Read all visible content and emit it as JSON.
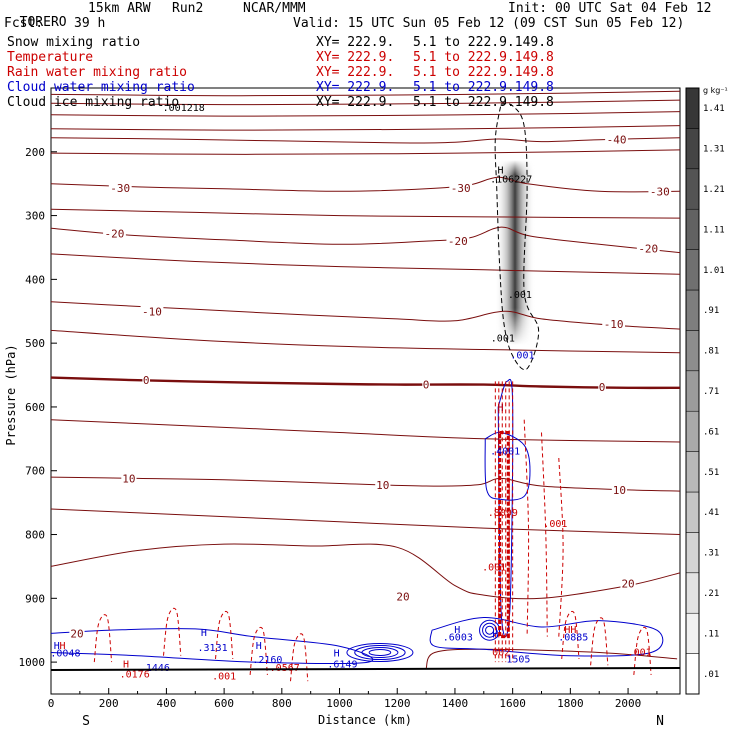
{
  "header": {
    "model": "TORERO",
    "config": "15km ARW",
    "run": "Run2",
    "org": "NCAR/MMM",
    "init": "Init: 00 UTC Sat 04 Feb 12",
    "fcst_label": "Fcst:",
    "fcst_value": "39 h",
    "valid": "Valid: 15 UTC Sun 05 Feb 12 (09 CST Sun 05 Feb 12)"
  },
  "fields": [
    {
      "name": "Snow mixing ratio",
      "xy": "XY= 222.9.",
      "range": "5.1 to 222.9.149.8",
      "color": "#000000"
    },
    {
      "name": "Temperature",
      "xy": "XY= 222.9.",
      "range": "5.1 to 222.9.149.8",
      "color": "#cc0000"
    },
    {
      "name": "Rain water mixing ratio",
      "xy": "XY= 222.9.",
      "range": "5.1 to 222.9.149.8",
      "color": "#cc0000"
    },
    {
      "name": "Cloud water mixing ratio",
      "xy": "XY= 222.9.",
      "range": "5.1 to 222.9.149.8",
      "color": "#0000cc"
    },
    {
      "name": "Cloud ice mixing ratio",
      "xy": "XY= 222.9.",
      "range": "5.1 to 222.9.149.8",
      "color": "#000000"
    }
  ],
  "chart_data": {
    "type": "line",
    "xlabel": "Distance (km)",
    "ylabel": "Pressure (hPa)",
    "x_ticks": [
      0,
      200,
      400,
      600,
      800,
      1000,
      1200,
      1400,
      1600,
      1800,
      2000
    ],
    "y_ticks": [
      200,
      300,
      400,
      500,
      600,
      700,
      800,
      900,
      1000
    ],
    "xlim": [
      0,
      2180
    ],
    "ylim": [
      1050,
      100
    ],
    "x_end_labels": {
      "left": "S",
      "right": "N"
    },
    "colorbar": {
      "unit": "g kg⁻¹",
      "labels": [
        ".01",
        ".11",
        ".21",
        ".31",
        ".41",
        ".51",
        ".61",
        ".71",
        ".81",
        ".91",
        "1.01",
        "1.11",
        "1.21",
        "1.31",
        "1.41"
      ]
    },
    "isotherms": [
      {
        "value": -40,
        "label": "-40",
        "points": [
          [
            0,
            178
          ],
          [
            400,
            180
          ],
          [
            800,
            183
          ],
          [
            1200,
            186
          ],
          [
            1400,
            185
          ],
          [
            1550,
            180
          ],
          [
            1700,
            184
          ],
          [
            1900,
            181
          ],
          [
            2180,
            178
          ]
        ]
      },
      {
        "value": -30,
        "label": "-30",
        "points": [
          [
            0,
            250
          ],
          [
            300,
            255
          ],
          [
            600,
            258
          ],
          [
            1000,
            262
          ],
          [
            1300,
            258
          ],
          [
            1450,
            252
          ],
          [
            1550,
            240
          ],
          [
            1650,
            250
          ],
          [
            1900,
            262
          ],
          [
            2180,
            262
          ]
        ]
      },
      {
        "value": -20,
        "label": "-20",
        "points": [
          [
            0,
            320
          ],
          [
            250,
            330
          ],
          [
            600,
            338
          ],
          [
            1000,
            345
          ],
          [
            1300,
            340
          ],
          [
            1450,
            335
          ],
          [
            1560,
            318
          ],
          [
            1660,
            332
          ],
          [
            1900,
            345
          ],
          [
            2180,
            358
          ]
        ]
      },
      {
        "value": -10,
        "label": "-10",
        "points": [
          [
            0,
            435
          ],
          [
            200,
            440
          ],
          [
            500,
            447
          ],
          [
            900,
            456
          ],
          [
            1200,
            462
          ],
          [
            1400,
            465
          ],
          [
            1570,
            450
          ],
          [
            1700,
            462
          ],
          [
            1950,
            472
          ],
          [
            2180,
            478
          ]
        ]
      },
      {
        "value": 0,
        "label": "0",
        "points": [
          [
            0,
            554
          ],
          [
            300,
            558
          ],
          [
            700,
            562
          ],
          [
            1000,
            564
          ],
          [
            1200,
            565
          ],
          [
            1500,
            565
          ],
          [
            1700,
            568
          ],
          [
            2000,
            570
          ],
          [
            2180,
            570
          ]
        ]
      },
      {
        "value": 10,
        "label": "10",
        "points": [
          [
            0,
            710
          ],
          [
            300,
            712
          ],
          [
            600,
            714
          ],
          [
            1000,
            720
          ],
          [
            1300,
            724
          ],
          [
            1480,
            722
          ],
          [
            1560,
            712
          ],
          [
            1700,
            724
          ],
          [
            2000,
            730
          ],
          [
            2180,
            732
          ]
        ]
      },
      {
        "value": 20,
        "label": "20",
        "points": [
          [
            0,
            850
          ],
          [
            300,
            825
          ],
          [
            600,
            815
          ],
          [
            900,
            818
          ],
          [
            1200,
            820
          ],
          [
            1400,
            880
          ],
          [
            1500,
            895
          ],
          [
            1700,
            900
          ],
          [
            2000,
            880
          ],
          [
            2180,
            860
          ]
        ]
      }
    ],
    "isotherm_labels": [
      {
        "text": "-40",
        "x": 1960,
        "y": 181
      },
      {
        "text": "-30",
        "x": 240,
        "y": 257
      },
      {
        "text": "-30",
        "x": 1420,
        "y": 257
      },
      {
        "text": "-30",
        "x": 2110,
        "y": 262
      },
      {
        "text": "-20",
        "x": 220,
        "y": 328
      },
      {
        "text": "-20",
        "x": 1410,
        "y": 340
      },
      {
        "text": "-20",
        "x": 2070,
        "y": 352
      },
      {
        "text": "-10",
        "x": 350,
        "y": 450
      },
      {
        "text": "-10",
        "x": 1950,
        "y": 470
      },
      {
        "text": "0",
        "x": 330,
        "y": 558
      },
      {
        "text": "0",
        "x": 1300,
        "y": 565
      },
      {
        "text": "0",
        "x": 1910,
        "y": 569
      },
      {
        "text": "10",
        "x": 270,
        "y": 712
      },
      {
        "text": "10",
        "x": 1150,
        "y": 722
      },
      {
        "text": "10",
        "x": 1970,
        "y": 730
      },
      {
        "text": "20",
        "x": 1220,
        "y": 897
      },
      {
        "text": "20",
        "x": 2000,
        "y": 877
      },
      {
        "text": "20",
        "x": 90,
        "y": 955
      }
    ],
    "annotations": [
      {
        "text": ".001218",
        "x": 460,
        "y": 130,
        "color": "#000000"
      },
      {
        "text": "H",
        "x": 1558,
        "y": 228,
        "color": "#000000"
      },
      {
        "text": ".106227",
        "x": 1595,
        "y": 242,
        "color": "#000000"
      },
      {
        "text": ".001",
        "x": 1625,
        "y": 423,
        "color": "#000000"
      },
      {
        "text": ".001",
        "x": 1566,
        "y": 491,
        "color": "#000000"
      },
      {
        "text": ".001",
        "x": 1634,
        "y": 518,
        "color": "#0000cc"
      },
      {
        "text": "H",
        "x": 1558,
        "y": 600,
        "color": "#0000cc"
      },
      {
        "text": "H",
        "x": 1558,
        "y": 600,
        "color": "#cc0000"
      },
      {
        "text": ".4001",
        "x": 1574,
        "y": 668,
        "color": "#0000cc"
      },
      {
        "text": ".8099",
        "x": 1566,
        "y": 765,
        "color": "#cc0000"
      },
      {
        "text": ".001",
        "x": 1748,
        "y": 782,
        "color": "#cc0000"
      },
      {
        "text": ".001",
        "x": 1536,
        "y": 850,
        "color": "#cc0000"
      },
      {
        "text": "HH",
        "x": 1800,
        "y": 948,
        "color": "#cc0000"
      },
      {
        "text": ".0885",
        "x": 1810,
        "y": 960,
        "color": "#0000cc"
      },
      {
        "text": ".001",
        "x": 2040,
        "y": 983,
        "color": "#cc0000"
      },
      {
        "text": "H",
        "x": 1408,
        "y": 948,
        "color": "#0000cc"
      },
      {
        "text": ".6003",
        "x": 1410,
        "y": 960,
        "color": "#0000cc"
      },
      {
        "text": "H",
        "x": 1540,
        "y": 955,
        "color": "#0000cc"
      },
      {
        "text": "002",
        "x": 1560,
        "y": 983,
        "color": "#cc0000"
      },
      {
        "text": "1505",
        "x": 1620,
        "y": 994,
        "color": "#0000cc"
      },
      {
        "text": "H",
        "x": 530,
        "y": 953,
        "color": "#0000cc"
      },
      {
        "text": ".3131",
        "x": 560,
        "y": 976,
        "color": "#0000cc"
      },
      {
        "text": "H",
        "x": 720,
        "y": 973,
        "color": "#0000cc"
      },
      {
        "text": ".2160",
        "x": 750,
        "y": 995,
        "color": "#0000cc"
      },
      {
        "text": ".0567",
        "x": 810,
        "y": 1008,
        "color": "#cc0000"
      },
      {
        "text": "H",
        "x": 990,
        "y": 985,
        "color": "#0000cc"
      },
      {
        "text": ".6149",
        "x": 1010,
        "y": 1002,
        "color": "#0000cc"
      },
      {
        "text": "H",
        "x": 260,
        "y": 1002,
        "color": "#cc0000"
      },
      {
        "text": ".1446",
        "x": 360,
        "y": 1008,
        "color": "#0000cc"
      },
      {
        "text": ".0176",
        "x": 290,
        "y": 1018,
        "color": "#cc0000"
      },
      {
        "text": ".001",
        "x": 600,
        "y": 1021,
        "color": "#cc0000"
      },
      {
        "text": "H",
        "x": 20,
        "y": 973,
        "color": "#0000cc"
      },
      {
        "text": ".0048",
        "x": 50,
        "y": 985,
        "color": "#0000cc"
      },
      {
        "text": "H",
        "x": 40,
        "y": 973,
        "color": "#cc0000"
      }
    ]
  }
}
